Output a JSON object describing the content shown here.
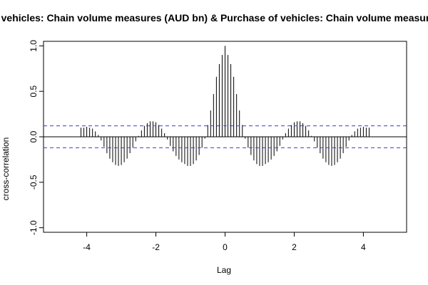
{
  "chart_data": {
    "type": "bar",
    "title": "Purchase of vehicles: Chain volume measures (AUD bn) & Purchase of vehicles: Chain volume measures (AUD bn)",
    "xlabel": "Lag",
    "ylabel": "cross-correlation",
    "xlim": [
      -5.25,
      5.25
    ],
    "ylim": [
      -1.05,
      1.05
    ],
    "x_ticks": [
      -4,
      -2,
      0,
      2,
      4
    ],
    "y_ticks": [
      -1.0,
      -0.5,
      0.0,
      0.5,
      1.0
    ],
    "y_tick_labels": [
      "-1.0",
      "-0.5",
      "0.0",
      "0.5",
      "1.0"
    ],
    "confidence_band": 0.12,
    "lag_step": 0.0833333,
    "values": [
      0.1,
      0.1,
      0.11,
      0.1,
      0.09,
      0.06,
      0.02,
      -0.04,
      -0.11,
      -0.18,
      -0.24,
      -0.28,
      -0.31,
      -0.32,
      -0.31,
      -0.28,
      -0.24,
      -0.18,
      -0.12,
      -0.05,
      0.01,
      0.07,
      0.12,
      0.15,
      0.17,
      0.17,
      0.16,
      0.13,
      0.09,
      0.04,
      -0.03,
      -0.1,
      -0.16,
      -0.21,
      -0.25,
      -0.28,
      -0.3,
      -0.32,
      -0.32,
      -0.3,
      -0.26,
      -0.2,
      -0.12,
      -0.02,
      0.13,
      0.29,
      0.47,
      0.66,
      0.8,
      0.9,
      1.0,
      0.9,
      0.8,
      0.66,
      0.47,
      0.29,
      0.13,
      -0.02,
      -0.12,
      -0.2,
      -0.26,
      -0.3,
      -0.32,
      -0.32,
      -0.3,
      -0.28,
      -0.25,
      -0.21,
      -0.16,
      -0.1,
      -0.03,
      0.04,
      0.09,
      0.13,
      0.16,
      0.17,
      0.17,
      0.15,
      0.12,
      0.07,
      0.01,
      -0.05,
      -0.12,
      -0.18,
      -0.24,
      -0.28,
      -0.31,
      -0.32,
      -0.31,
      -0.28,
      -0.24,
      -0.18,
      -0.11,
      -0.04,
      0.02,
      0.06,
      0.09,
      0.1,
      0.11,
      0.1,
      0.1
    ],
    "colors": {
      "bars": "#000000",
      "band": "#3b3bd6",
      "zero": "#000000",
      "frame": "#000000"
    }
  }
}
